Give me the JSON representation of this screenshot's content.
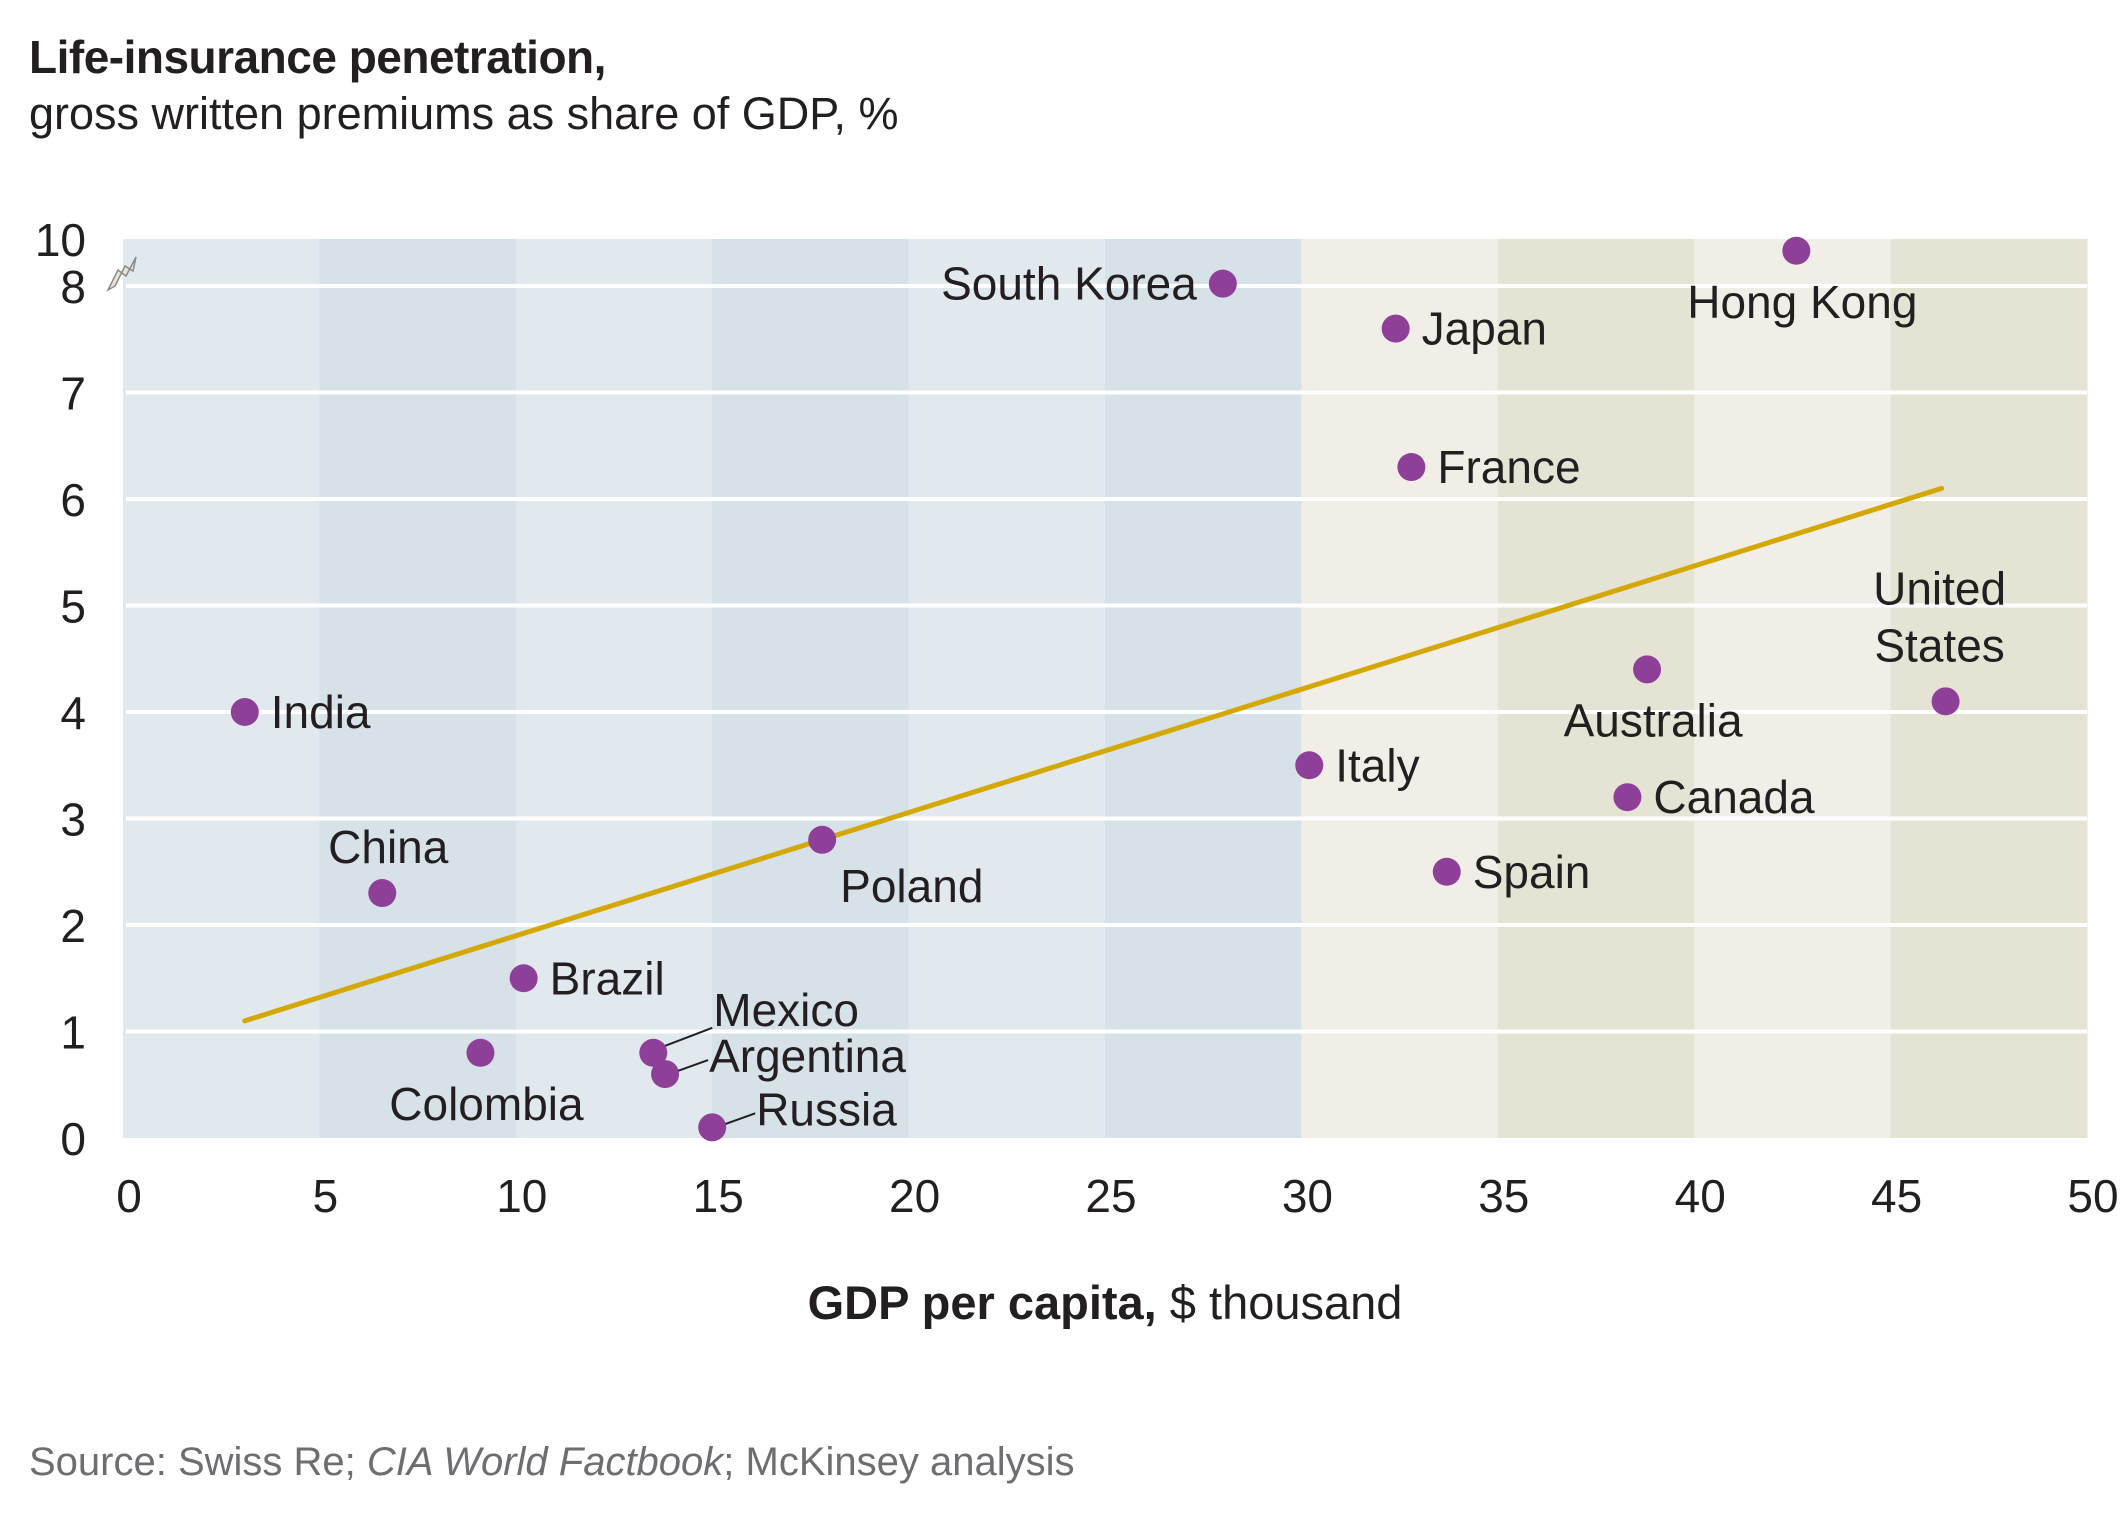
{
  "chart_data": {
    "type": "scatter",
    "title": "Life-insurance penetration,",
    "subtitle": "gross written premiums as share of GDP, %",
    "xlabel_bold": "GDP per capita,",
    "xlabel_rest": " $ thousand",
    "ylabel": "",
    "xlim": [
      0,
      50
    ],
    "ylim": [
      0,
      10
    ],
    "y_axis_break": {
      "from": 8,
      "to": 10
    },
    "x_ticks": [
      0,
      5,
      10,
      15,
      20,
      25,
      30,
      35,
      40,
      45,
      50
    ],
    "y_ticks": [
      0,
      1,
      2,
      3,
      4,
      5,
      6,
      7,
      8,
      10
    ],
    "grid": "horizontal",
    "background_bands": {
      "x_step": 5,
      "low_income_region": [
        0,
        30
      ],
      "high_income_region": [
        30,
        50
      ],
      "colors": {
        "low_light": "#E1E8EE",
        "low_dark": "#D7E1E8",
        "high_light": "#F0EEE6",
        "high_dark": "#E5E4D4"
      }
    },
    "point_color": "#8E3F97",
    "trendline_color": "#D4A800",
    "trendline": {
      "x": [
        3.1,
        46.3
      ],
      "y": [
        1.1,
        6.1
      ]
    },
    "points": [
      {
        "label": "India",
        "x": 3.1,
        "y": 4.0,
        "label_pos": "right"
      },
      {
        "label": "China",
        "x": 6.6,
        "y": 2.3,
        "label_pos": "above"
      },
      {
        "label": "Colombia",
        "x": 9.1,
        "y": 0.8,
        "label_pos": "below"
      },
      {
        "label": "Brazil",
        "x": 10.2,
        "y": 1.5,
        "label_pos": "right"
      },
      {
        "label": "Mexico",
        "x": 13.5,
        "y": 0.8,
        "label_pos": "leader-upper-right"
      },
      {
        "label": "Argentina",
        "x": 13.8,
        "y": 0.6,
        "label_pos": "leader-right"
      },
      {
        "label": "Russia",
        "x": 15.0,
        "y": 0.1,
        "label_pos": "leader-right"
      },
      {
        "label": "Poland",
        "x": 17.8,
        "y": 2.8,
        "label_pos": "below-right"
      },
      {
        "label": "South Korea",
        "x": 28.0,
        "y": 8.1,
        "label_pos": "left"
      },
      {
        "label": "Italy",
        "x": 30.2,
        "y": 3.5,
        "label_pos": "right"
      },
      {
        "label": "Japan",
        "x": 32.4,
        "y": 7.6,
        "label_pos": "right"
      },
      {
        "label": "France",
        "x": 32.8,
        "y": 6.3,
        "label_pos": "right"
      },
      {
        "label": "Spain",
        "x": 33.7,
        "y": 2.5,
        "label_pos": "right"
      },
      {
        "label": "Canada",
        "x": 38.3,
        "y": 3.2,
        "label_pos": "right"
      },
      {
        "label": "Australia",
        "x": 38.8,
        "y": 4.4,
        "label_pos": "below"
      },
      {
        "label": "Hong Kong",
        "x": 42.6,
        "y": 9.5,
        "label_pos": "below"
      },
      {
        "label": "United States",
        "x": 46.4,
        "y": 4.1,
        "label_pos": "above-two-line"
      }
    ]
  },
  "source": {
    "prefix": "Source: Swiss Re; ",
    "italic": "CIA World Factbook",
    "suffix": "; McKinsey analysis"
  }
}
